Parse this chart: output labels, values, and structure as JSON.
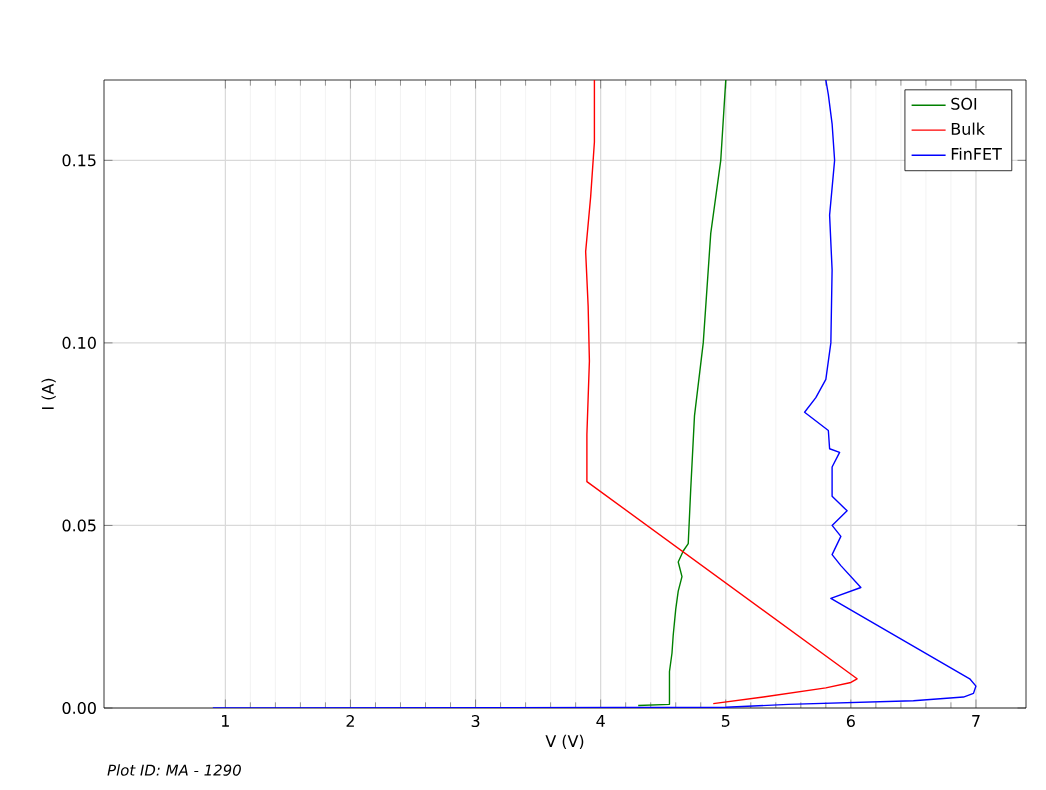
{
  "chart_data": {
    "type": "line",
    "xlabel": "V (V)",
    "ylabel": "I (A)",
    "annotations": [
      "Plot ID: MA - 1290"
    ],
    "xlim": [
      0.03,
      7.4
    ],
    "ylim": [
      0,
      0.172
    ],
    "xticks": [
      1,
      2,
      3,
      4,
      5,
      6,
      7
    ],
    "yticks": [
      {
        "value": 0,
        "label": "0.00"
      },
      {
        "value": 0.05,
        "label": "0.05"
      },
      {
        "value": 0.1,
        "label": "0.10"
      },
      {
        "value": 0.15,
        "label": "0.15"
      }
    ],
    "grid": true,
    "legend": "top right",
    "marker": "none",
    "line_style": "solid",
    "series": [
      {
        "name": "SOI",
        "color": "#008000",
        "x": [
          4.3,
          4.55,
          4.55,
          4.57,
          4.58,
          4.6,
          4.62,
          4.65,
          4.62,
          4.66,
          4.7,
          4.72,
          4.75,
          4.82,
          4.88,
          4.96,
          5.0
        ],
        "values": [
          0.0007,
          0.001,
          0.01,
          0.015,
          0.02,
          0.027,
          0.032,
          0.036,
          0.04,
          0.043,
          0.045,
          0.06,
          0.08,
          0.1,
          0.13,
          0.15,
          0.172
        ]
      },
      {
        "name": "Bulk",
        "color": "#ff0000",
        "x": [
          4.9,
          5.3,
          5.8,
          6.0,
          6.05,
          3.89,
          3.89,
          3.91,
          3.9,
          3.88,
          3.92,
          3.95,
          3.95
        ],
        "values": [
          0.0012,
          0.003,
          0.0055,
          0.007,
          0.008,
          0.062,
          0.075,
          0.095,
          0.11,
          0.125,
          0.14,
          0.155,
          0.172
        ]
      },
      {
        "name": "FinFET",
        "color": "#0000ff",
        "x": [
          0.9,
          5.0,
          5.5,
          6.5,
          6.9,
          6.98,
          7.0,
          6.95,
          5.84,
          6.08,
          5.92,
          5.85,
          5.92,
          5.85,
          5.97,
          5.85,
          5.85,
          5.91,
          5.83,
          5.82,
          5.63,
          5.72,
          5.8,
          5.84,
          5.85,
          5.83,
          5.87,
          5.85,
          5.82,
          5.8
        ],
        "values": [
          0,
          0.0002,
          0.001,
          0.002,
          0.003,
          0.004,
          0.006,
          0.008,
          0.03,
          0.033,
          0.039,
          0.042,
          0.047,
          0.05,
          0.054,
          0.058,
          0.066,
          0.07,
          0.071,
          0.076,
          0.081,
          0.085,
          0.09,
          0.1,
          0.12,
          0.135,
          0.15,
          0.16,
          0.168,
          0.172
        ]
      }
    ]
  }
}
